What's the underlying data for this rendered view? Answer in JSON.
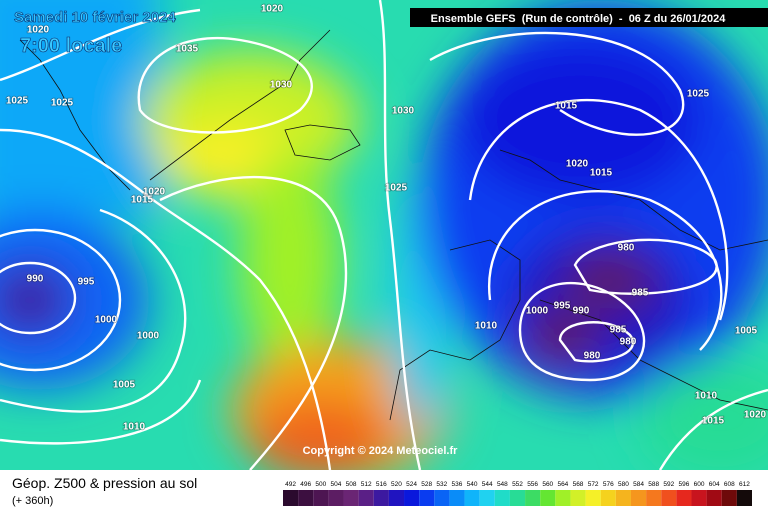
{
  "header": {
    "title": "Samedi 10 février 2024",
    "subtitle": "7:00 locale",
    "run_info": "Ensemble GEFS  (Run de contrôle)  -  06 Z du 26/01/2024",
    "copyright": "Copyright © 2024 Meteociel.fr"
  },
  "isobar_labels": [
    1020,
    1020,
    1035,
    1025,
    1025,
    1030,
    1030,
    1015,
    1025,
    1020,
    1015,
    1020,
    1015,
    1025,
    980,
    990,
    995,
    985,
    1000,
    1000,
    1010,
    1000,
    995,
    990,
    985,
    980,
    980,
    1005,
    1005,
    1010,
    1010,
    1015,
    1020
  ],
  "footer": {
    "title": "Géop. Z500 & pression au sol",
    "lead_time": "(+ 360h)"
  },
  "legend": {
    "items": [
      {
        "value": 492,
        "color": "#2b0a2e"
      },
      {
        "value": 496,
        "color": "#3c0f40"
      },
      {
        "value": 500,
        "color": "#4d1552"
      },
      {
        "value": 504,
        "color": "#5c1d63"
      },
      {
        "value": 508,
        "color": "#6a2574"
      },
      {
        "value": 512,
        "color": "#5a1f86"
      },
      {
        "value": 516,
        "color": "#3c19a0"
      },
      {
        "value": 520,
        "color": "#2014c0"
      },
      {
        "value": 524,
        "color": "#0a18dc"
      },
      {
        "value": 528,
        "color": "#0a3cf0"
      },
      {
        "value": 532,
        "color": "#0a64f5"
      },
      {
        "value": 536,
        "color": "#0a8cf8"
      },
      {
        "value": 540,
        "color": "#10b4fa"
      },
      {
        "value": 544,
        "color": "#20d2f0"
      },
      {
        "value": 548,
        "color": "#20dcc8"
      },
      {
        "value": 552,
        "color": "#28dc96"
      },
      {
        "value": 556,
        "color": "#3cdc64"
      },
      {
        "value": 560,
        "color": "#64e632"
      },
      {
        "value": 564,
        "color": "#a0f028"
      },
      {
        "value": 568,
        "color": "#d2f028"
      },
      {
        "value": 572,
        "color": "#f5f028"
      },
      {
        "value": 576,
        "color": "#f5d21e"
      },
      {
        "value": 580,
        "color": "#f5b41e"
      },
      {
        "value": 584,
        "color": "#f5961e"
      },
      {
        "value": 588,
        "color": "#f5781e"
      },
      {
        "value": 592,
        "color": "#f0501e"
      },
      {
        "value": 596,
        "color": "#e6281e"
      },
      {
        "value": 600,
        "color": "#c8141e"
      },
      {
        "value": 604,
        "color": "#a00a14"
      },
      {
        "value": 608,
        "color": "#6e0a0a"
      },
      {
        "value": 612,
        "color": "#140a0a"
      }
    ]
  }
}
